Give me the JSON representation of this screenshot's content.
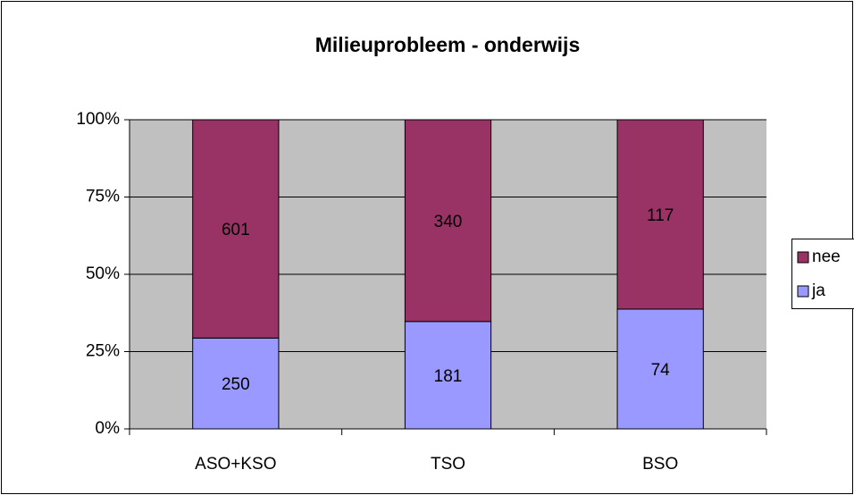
{
  "chart_data": {
    "type": "bar",
    "stacked": "percent",
    "title": "Milieuprobleem - onderwijs",
    "categories": [
      "ASO+KSO",
      "TSO",
      "BSO"
    ],
    "series": [
      {
        "name": "ja",
        "color": "#9999ff",
        "values": [
          250,
          181,
          74
        ]
      },
      {
        "name": "nee",
        "color": "#993366",
        "values": [
          601,
          340,
          117
        ]
      }
    ],
    "ylim": [
      0,
      100
    ],
    "yticks": [
      {
        "value": 0,
        "label": "0%"
      },
      {
        "value": 25,
        "label": "25%"
      },
      {
        "value": 50,
        "label": "50%"
      },
      {
        "value": 75,
        "label": "75%"
      },
      {
        "value": 100,
        "label": "100%"
      }
    ],
    "grid": true,
    "plot_background": "#c0c0c0",
    "legend": "right"
  }
}
